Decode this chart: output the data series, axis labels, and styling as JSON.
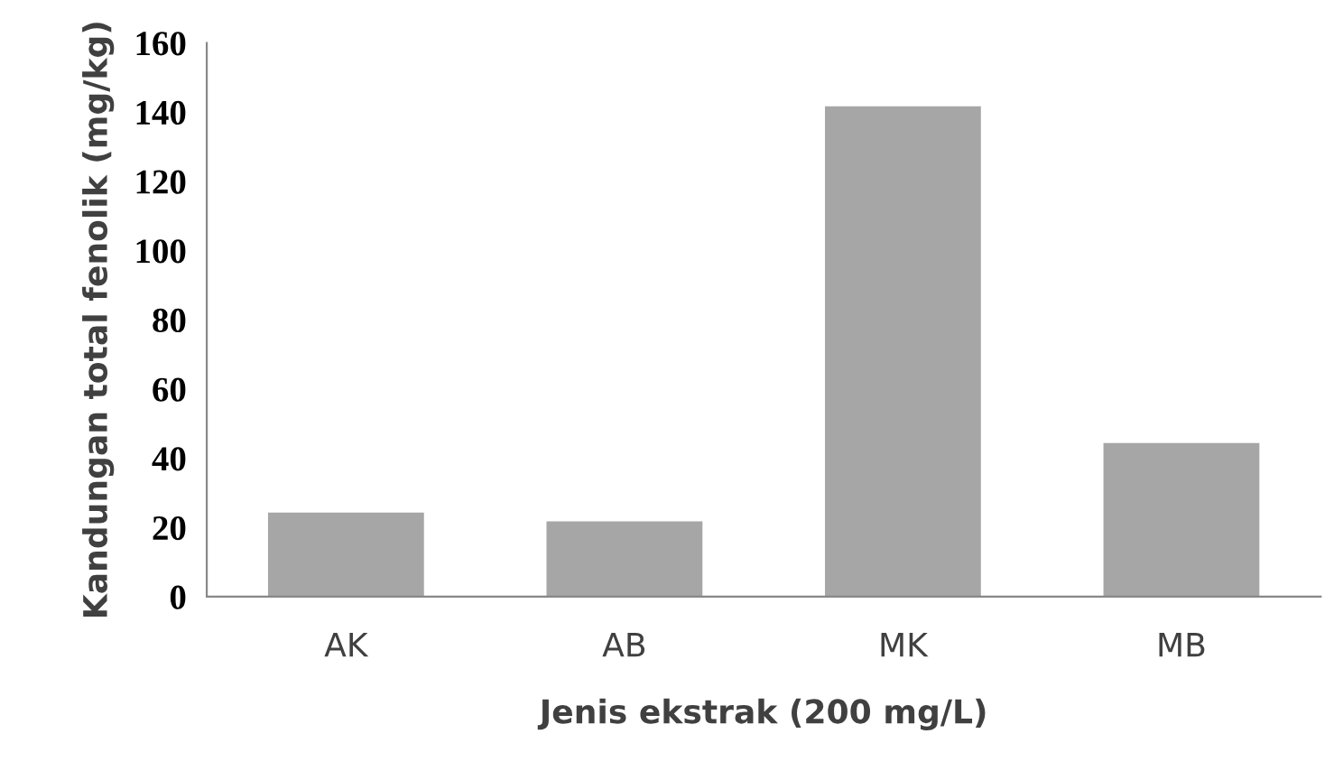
{
  "chart_data": {
    "type": "bar",
    "xlabel": "Jenis ekstrak (200 mg/L)",
    "ylabel": "Kandungan total fenolik (mg/kg)",
    "categories": [
      "AK",
      "AB",
      "MK",
      "MB"
    ],
    "values": [
      24.3,
      21.8,
      141.7,
      44.4
    ],
    "color": "#a6a6a6",
    "ylim": [
      0,
      160
    ],
    "yticks": [
      0,
      20,
      40,
      60,
      80,
      100,
      120,
      140,
      160
    ],
    "grid": false,
    "legend": false
  }
}
